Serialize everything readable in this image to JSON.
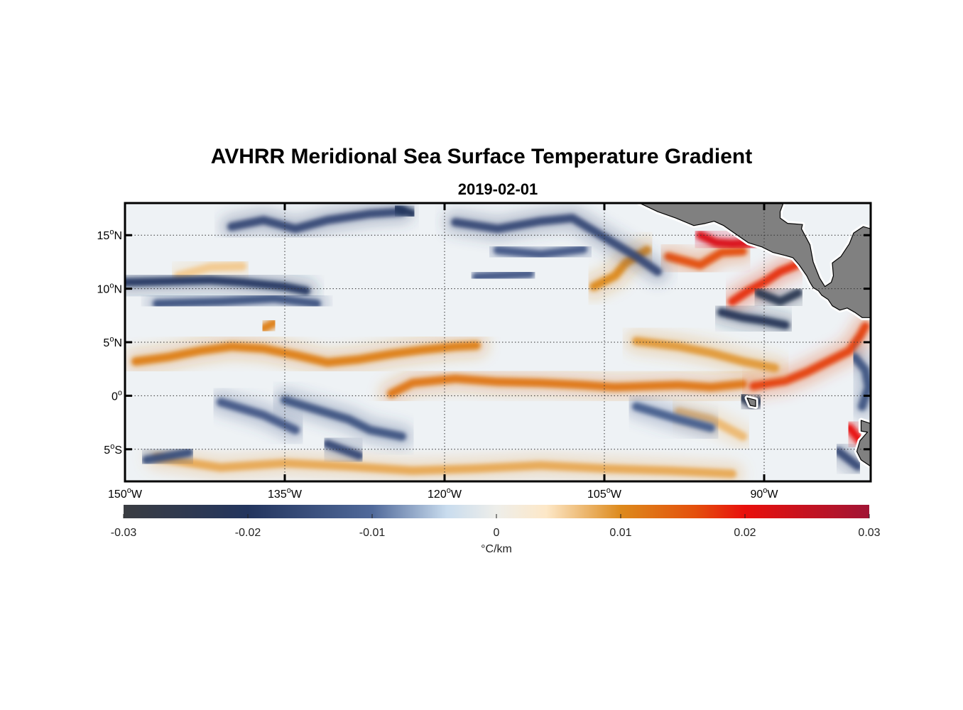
{
  "title": "AVHRR Meridional Sea Surface Temperature Gradient",
  "subtitle": "2019-02-01",
  "map": {
    "lon_range": [
      -150,
      -80
    ],
    "lat_range": [
      -8,
      18
    ],
    "lon_ticks": [
      {
        "value": -150,
        "deg": "150",
        "hemi": "W"
      },
      {
        "value": -135,
        "deg": "135",
        "hemi": "W"
      },
      {
        "value": -120,
        "deg": "120",
        "hemi": "W"
      },
      {
        "value": -105,
        "deg": "105",
        "hemi": "W"
      },
      {
        "value": -90,
        "deg": "90",
        "hemi": "W"
      }
    ],
    "lat_ticks": [
      {
        "value": 15,
        "deg": "15",
        "hemi": "N"
      },
      {
        "value": 10,
        "deg": "10",
        "hemi": "N"
      },
      {
        "value": 5,
        "deg": "5",
        "hemi": "N"
      },
      {
        "value": 0,
        "deg": "0",
        "hemi": ""
      },
      {
        "value": -5,
        "deg": "5",
        "hemi": "S"
      }
    ],
    "grid": true,
    "land_color": "#808080",
    "ocean_background": "#eef2f5"
  },
  "colorbar": {
    "min": -0.03,
    "max": 0.03,
    "ticks": [
      "-0.03",
      "-0.02",
      "-0.01",
      "0",
      "0.01",
      "0.02",
      "0.03"
    ],
    "tick_values": [
      -0.03,
      -0.02,
      -0.01,
      0,
      0.01,
      0.02,
      0.03
    ],
    "label": "°C/km",
    "stops": [
      {
        "v": -0.03,
        "color": "#3a3d42"
      },
      {
        "v": -0.02,
        "color": "#23355e"
      },
      {
        "v": -0.01,
        "color": "#50699a"
      },
      {
        "v": -0.004,
        "color": "#c9dcee"
      },
      {
        "v": 0,
        "color": "#eeeeea"
      },
      {
        "v": 0.004,
        "color": "#fde8c8"
      },
      {
        "v": 0.01,
        "color": "#dd8a1c"
      },
      {
        "v": 0.016,
        "color": "#e4500c"
      },
      {
        "v": 0.02,
        "color": "#e8100c"
      },
      {
        "v": 0.03,
        "color": "#a11535"
      }
    ]
  },
  "features": {
    "positive_bands": [
      {
        "value": 0.011,
        "points": [
          [
            -149,
            3.2
          ],
          [
            -146,
            3.6
          ],
          [
            -143,
            4.2
          ],
          [
            -140,
            4.6
          ],
          [
            -137,
            4.4
          ],
          [
            -134,
            3.8
          ],
          [
            -131,
            3.1
          ],
          [
            -128,
            3.4
          ],
          [
            -125,
            3.9
          ],
          [
            -122,
            4.3
          ],
          [
            -119,
            4.6
          ],
          [
            -117,
            4.7
          ]
        ]
      },
      {
        "value": 0.012,
        "points": [
          [
            -125,
            0.2
          ],
          [
            -123,
            1.2
          ],
          [
            -119,
            1.6
          ],
          [
            -115,
            1.3
          ],
          [
            -111,
            1.2
          ],
          [
            -107,
            1.0
          ],
          [
            -104,
            0.8
          ],
          [
            -101,
            0.9
          ],
          [
            -98,
            1.0
          ],
          [
            -95,
            0.8
          ],
          [
            -92,
            1.1
          ]
        ]
      },
      {
        "value": 0.017,
        "points": [
          [
            -91,
            0.9
          ],
          [
            -88,
            1.4
          ],
          [
            -86,
            2.2
          ],
          [
            -84,
            3.2
          ],
          [
            -82,
            4.2
          ],
          [
            -81,
            5.6
          ],
          [
            -80.5,
            6.5
          ]
        ]
      },
      {
        "value": 0.009,
        "points": [
          [
            -102,
            5.1
          ],
          [
            -98,
            4.6
          ],
          [
            -95,
            4.0
          ],
          [
            -92,
            3.2
          ],
          [
            -89,
            2.6
          ]
        ]
      },
      {
        "value": 0.01,
        "points": [
          [
            -106,
            10.2
          ],
          [
            -104,
            11.2
          ],
          [
            -103,
            12.4
          ],
          [
            -101,
            13.6
          ]
        ]
      },
      {
        "value": 0.016,
        "points": [
          [
            -99,
            13.0
          ],
          [
            -96,
            12.2
          ],
          [
            -94,
            13.4
          ],
          [
            -92,
            13.5
          ]
        ]
      },
      {
        "value": 0.018,
        "points": [
          [
            -93,
            8.8
          ],
          [
            -91.5,
            9.8
          ],
          [
            -90,
            10.6
          ],
          [
            -88.5,
            11.6
          ],
          [
            -87,
            12.2
          ]
        ]
      },
      {
        "value": 0.022,
        "points": [
          [
            -96,
            15.0
          ],
          [
            -94.5,
            14.3
          ],
          [
            -93,
            14.2
          ],
          [
            -91,
            14.3
          ]
        ]
      },
      {
        "value": 0.011,
        "points": [
          [
            -137,
            6.3
          ],
          [
            -136,
            6.8
          ]
        ]
      },
      {
        "value": 0.02,
        "points": [
          [
            -82,
            -3.0
          ],
          [
            -81,
            -4.2
          ]
        ]
      },
      {
        "value": 0.008,
        "points": [
          [
            -147,
            -5.8
          ],
          [
            -141,
            -6.7
          ],
          [
            -135,
            -6.3
          ],
          [
            -129,
            -6.6
          ],
          [
            -123,
            -7.0
          ],
          [
            -117,
            -6.8
          ],
          [
            -111,
            -6.5
          ],
          [
            -105,
            -6.8
          ],
          [
            -99,
            -7.0
          ],
          [
            -93,
            -7.3
          ]
        ]
      },
      {
        "value": 0.006,
        "points": [
          [
            -145,
            11.2
          ],
          [
            -142,
            12.0
          ],
          [
            -139,
            12.1
          ]
        ]
      },
      {
        "value": 0.007,
        "points": [
          [
            -98,
            -1.5
          ],
          [
            -95,
            -2.2
          ],
          [
            -92,
            -3.8
          ]
        ]
      }
    ],
    "negative_bands": [
      {
        "value": -0.019,
        "points": [
          [
            -150,
            10.6
          ],
          [
            -146,
            10.7
          ],
          [
            -142,
            10.8
          ],
          [
            -139,
            10.6
          ],
          [
            -135,
            10.2
          ],
          [
            -133,
            9.8
          ]
        ]
      },
      {
        "value": -0.014,
        "points": [
          [
            -147,
            8.6
          ],
          [
            -141,
            8.8
          ],
          [
            -136,
            9.1
          ],
          [
            -132,
            8.6
          ]
        ]
      },
      {
        "value": -0.016,
        "points": [
          [
            -140,
            15.8
          ],
          [
            -137,
            16.4
          ],
          [
            -134,
            15.6
          ],
          [
            -131,
            16.4
          ],
          [
            -127,
            17.0
          ],
          [
            -124,
            17.2
          ]
        ]
      },
      {
        "value": -0.02,
        "points": [
          [
            -124.5,
            17.5
          ],
          [
            -123,
            17.0
          ]
        ]
      },
      {
        "value": -0.016,
        "points": [
          [
            -119,
            16.2
          ],
          [
            -115,
            15.6
          ],
          [
            -111,
            16.3
          ],
          [
            -108,
            16.6
          ],
          [
            -105,
            14.8
          ],
          [
            -102,
            13.0
          ],
          [
            -100,
            11.6
          ]
        ]
      },
      {
        "value": -0.013,
        "points": [
          [
            -115,
            13.6
          ],
          [
            -111,
            13.2
          ],
          [
            -107,
            13.7
          ]
        ]
      },
      {
        "value": -0.014,
        "points": [
          [
            -135,
            -0.4
          ],
          [
            -132,
            -1.3
          ],
          [
            -129,
            -2.2
          ],
          [
            -127,
            -3.2
          ],
          [
            -124,
            -3.8
          ]
        ]
      },
      {
        "value": -0.013,
        "points": [
          [
            -141,
            -0.6
          ],
          [
            -137,
            -1.8
          ],
          [
            -134,
            -3.2
          ]
        ]
      },
      {
        "value": -0.015,
        "points": [
          [
            -148,
            -6.0
          ],
          [
            -144,
            -5.3
          ]
        ]
      },
      {
        "value": -0.016,
        "points": [
          [
            -131,
            -4.5
          ],
          [
            -128,
            -5.6
          ]
        ]
      },
      {
        "value": -0.024,
        "points": [
          [
            -90.5,
            9.6
          ],
          [
            -88.5,
            8.8
          ],
          [
            -86.8,
            9.6
          ]
        ]
      },
      {
        "value": -0.022,
        "points": [
          [
            -94,
            7.8
          ],
          [
            -92,
            7.3
          ],
          [
            -90,
            7.0
          ],
          [
            -88,
            6.6
          ]
        ]
      },
      {
        "value": -0.024,
        "points": [
          [
            -92.0,
            -0.2
          ],
          [
            -91.0,
            -0.9
          ],
          [
            -90.5,
            -0.5
          ]
        ]
      },
      {
        "value": -0.012,
        "points": [
          [
            -102,
            -1.0
          ],
          [
            -98,
            -2.2
          ],
          [
            -95,
            -3.0
          ]
        ]
      },
      {
        "value": -0.014,
        "points": [
          [
            -81.5,
            3.6
          ],
          [
            -80.5,
            2.4
          ],
          [
            -80.2,
            0.8
          ],
          [
            -80.8,
            -1.0
          ]
        ]
      },
      {
        "value": -0.016,
        "points": [
          [
            -83,
            -5.2
          ],
          [
            -81.2,
            -6.6
          ]
        ]
      },
      {
        "value": -0.013,
        "points": [
          [
            -117,
            11.1
          ],
          [
            -112,
            11.4
          ]
        ]
      }
    ],
    "land": [
      {
        "points": [
          [
            -101.7,
            18
          ],
          [
            -100,
            17.2
          ],
          [
            -98.3,
            16.6
          ],
          [
            -96.6,
            15.9
          ],
          [
            -95.5,
            16.1
          ],
          [
            -94.7,
            16.3
          ],
          [
            -93.8,
            15.9
          ],
          [
            -92.8,
            15.2
          ],
          [
            -91.5,
            14.3
          ],
          [
            -90.2,
            13.9
          ],
          [
            -89.2,
            13.4
          ],
          [
            -88.0,
            13.1
          ],
          [
            -87.3,
            12.9
          ],
          [
            -86.7,
            12.2
          ],
          [
            -86.0,
            11.2
          ],
          [
            -85.7,
            10.6
          ],
          [
            -85.4,
            10.1
          ],
          [
            -84.9,
            9.8
          ],
          [
            -84.6,
            9.4
          ],
          [
            -84.0,
            9.0
          ],
          [
            -83.6,
            8.4
          ],
          [
            -82.9,
            8.0
          ],
          [
            -82.2,
            8.2
          ],
          [
            -81.5,
            7.8
          ],
          [
            -80.8,
            7.3
          ],
          [
            -80,
            7.3
          ],
          [
            -80,
            15.6
          ],
          [
            -80.7,
            15.8
          ],
          [
            -81.6,
            15.2
          ],
          [
            -82.0,
            14.2
          ],
          [
            -82.8,
            13.0
          ],
          [
            -83.6,
            12.4
          ],
          [
            -83.5,
            11.2
          ],
          [
            -83.7,
            10.6
          ],
          [
            -84.3,
            10.2
          ],
          [
            -84.8,
            11.0
          ],
          [
            -85.4,
            12.5
          ],
          [
            -85.7,
            14.1
          ],
          [
            -86.5,
            15.6
          ],
          [
            -86.4,
            16.0
          ],
          [
            -87.8,
            16.1
          ],
          [
            -88.5,
            16.6
          ],
          [
            -88.5,
            17.2
          ],
          [
            -88.2,
            18
          ]
        ]
      },
      {
        "points": [
          [
            -80,
            -2.6
          ],
          [
            -80.9,
            -2.3
          ],
          [
            -80.9,
            -3.3
          ],
          [
            -80.3,
            -3.4
          ],
          [
            -81.0,
            -4.2
          ],
          [
            -81.3,
            -5.2
          ],
          [
            -80.9,
            -6.0
          ],
          [
            -80.0,
            -6.6
          ]
        ]
      },
      {
        "points": [
          [
            -91.6,
            -0.2
          ],
          [
            -90.8,
            -0.4
          ],
          [
            -90.8,
            -1.0
          ],
          [
            -91.3,
            -0.9
          ]
        ]
      }
    ]
  }
}
